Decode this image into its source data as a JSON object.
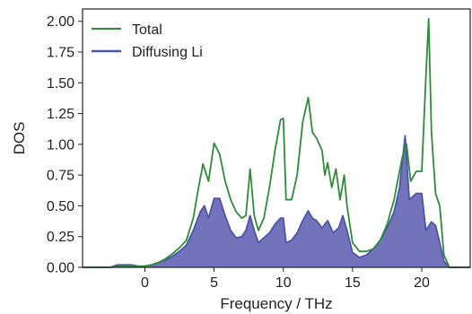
{
  "chart_data": {
    "type": "line",
    "title": "",
    "xlabel": "Frequency / THz",
    "ylabel": "DOS",
    "xlim": [
      -4.5,
      23.5
    ],
    "ylim": [
      0,
      2.1
    ],
    "xticks": [
      0,
      5,
      10,
      15,
      20
    ],
    "xtick_labels": [
      "0",
      "5",
      "10",
      "15",
      "20"
    ],
    "yticks": [
      0,
      0.25,
      0.5,
      0.75,
      1.0,
      1.25,
      1.5,
      1.75,
      2.0
    ],
    "ytick_labels": [
      "0.00",
      "0.25",
      "0.50",
      "0.75",
      "1.00",
      "1.25",
      "1.50",
      "1.75",
      "2.00"
    ],
    "grid": false,
    "legend_position": "top-left",
    "series": [
      {
        "name": "Total",
        "color": "#2e8b3a",
        "style": "line",
        "points": [
          [
            -4.5,
            0.0
          ],
          [
            -2.5,
            0.0
          ],
          [
            -2.0,
            0.005
          ],
          [
            -1.0,
            0.01
          ],
          [
            -0.5,
            0.005
          ],
          [
            0.0,
            0.01
          ],
          [
            0.5,
            0.02
          ],
          [
            1.0,
            0.04
          ],
          [
            1.5,
            0.07
          ],
          [
            2.0,
            0.11
          ],
          [
            2.5,
            0.16
          ],
          [
            3.0,
            0.22
          ],
          [
            3.5,
            0.4
          ],
          [
            3.8,
            0.6
          ],
          [
            4.2,
            0.84
          ],
          [
            4.6,
            0.7
          ],
          [
            5.0,
            1.01
          ],
          [
            5.4,
            0.92
          ],
          [
            5.8,
            0.7
          ],
          [
            6.2,
            0.55
          ],
          [
            6.6,
            0.45
          ],
          [
            7.0,
            0.4
          ],
          [
            7.3,
            0.42
          ],
          [
            7.6,
            0.8
          ],
          [
            7.9,
            0.42
          ],
          [
            8.2,
            0.3
          ],
          [
            8.6,
            0.4
          ],
          [
            9.0,
            0.65
          ],
          [
            9.4,
            0.95
          ],
          [
            9.8,
            1.2
          ],
          [
            10.0,
            1.21
          ],
          [
            10.2,
            0.55
          ],
          [
            10.6,
            0.55
          ],
          [
            11.0,
            0.75
          ],
          [
            11.4,
            1.18
          ],
          [
            11.8,
            1.38
          ],
          [
            12.1,
            1.1
          ],
          [
            12.4,
            1.05
          ],
          [
            12.8,
            0.95
          ],
          [
            13.0,
            0.75
          ],
          [
            13.2,
            0.85
          ],
          [
            13.5,
            0.65
          ],
          [
            13.8,
            0.8
          ],
          [
            14.1,
            0.55
          ],
          [
            14.4,
            0.75
          ],
          [
            14.6,
            0.5
          ],
          [
            15.0,
            0.2
          ],
          [
            15.5,
            0.13
          ],
          [
            16.0,
            0.13
          ],
          [
            16.5,
            0.15
          ],
          [
            17.0,
            0.22
          ],
          [
            17.5,
            0.35
          ],
          [
            18.0,
            0.55
          ],
          [
            18.6,
            0.9
          ],
          [
            18.9,
            1.0
          ],
          [
            19.2,
            0.7
          ],
          [
            19.6,
            0.78
          ],
          [
            20.0,
            0.78
          ],
          [
            20.3,
            1.55
          ],
          [
            20.5,
            2.02
          ],
          [
            20.7,
            1.1
          ],
          [
            21.0,
            0.6
          ],
          [
            21.3,
            0.5
          ],
          [
            21.6,
            0.1
          ],
          [
            22.0,
            0.0
          ],
          [
            23.5,
            0.0
          ]
        ]
      },
      {
        "name": "Diffusing Li",
        "color": "#4a55a8",
        "fill": "#6b6bb8",
        "style": "filled",
        "points": [
          [
            -4.5,
            0.0
          ],
          [
            -2.5,
            0.0
          ],
          [
            -2.0,
            0.02
          ],
          [
            -1.0,
            0.02
          ],
          [
            -0.5,
            0.01
          ],
          [
            0.0,
            0.01
          ],
          [
            0.5,
            0.02
          ],
          [
            1.0,
            0.04
          ],
          [
            1.5,
            0.06
          ],
          [
            2.0,
            0.09
          ],
          [
            2.5,
            0.13
          ],
          [
            3.0,
            0.18
          ],
          [
            3.5,
            0.3
          ],
          [
            4.0,
            0.45
          ],
          [
            4.3,
            0.5
          ],
          [
            4.6,
            0.4
          ],
          [
            5.0,
            0.56
          ],
          [
            5.4,
            0.56
          ],
          [
            5.8,
            0.42
          ],
          [
            6.2,
            0.3
          ],
          [
            6.6,
            0.24
          ],
          [
            7.0,
            0.25
          ],
          [
            7.3,
            0.3
          ],
          [
            7.6,
            0.42
          ],
          [
            7.9,
            0.3
          ],
          [
            8.2,
            0.2
          ],
          [
            8.6,
            0.24
          ],
          [
            9.0,
            0.28
          ],
          [
            9.4,
            0.35
          ],
          [
            9.8,
            0.4
          ],
          [
            10.0,
            0.4
          ],
          [
            10.2,
            0.2
          ],
          [
            10.6,
            0.22
          ],
          [
            11.0,
            0.28
          ],
          [
            11.4,
            0.38
          ],
          [
            11.8,
            0.46
          ],
          [
            12.1,
            0.4
          ],
          [
            12.4,
            0.38
          ],
          [
            12.8,
            0.32
          ],
          [
            13.2,
            0.38
          ],
          [
            13.6,
            0.28
          ],
          [
            14.0,
            0.32
          ],
          [
            14.3,
            0.42
          ],
          [
            14.6,
            0.3
          ],
          [
            15.0,
            0.12
          ],
          [
            15.5,
            0.08
          ],
          [
            16.0,
            0.1
          ],
          [
            16.5,
            0.15
          ],
          [
            17.0,
            0.22
          ],
          [
            17.5,
            0.32
          ],
          [
            18.0,
            0.45
          ],
          [
            18.4,
            0.65
          ],
          [
            18.8,
            1.07
          ],
          [
            19.1,
            0.55
          ],
          [
            19.6,
            0.6
          ],
          [
            20.0,
            0.6
          ],
          [
            20.3,
            0.3
          ],
          [
            20.7,
            0.37
          ],
          [
            21.0,
            0.34
          ],
          [
            21.3,
            0.2
          ],
          [
            21.6,
            0.05
          ],
          [
            22.0,
            0.0
          ],
          [
            23.5,
            0.0
          ]
        ]
      }
    ]
  }
}
